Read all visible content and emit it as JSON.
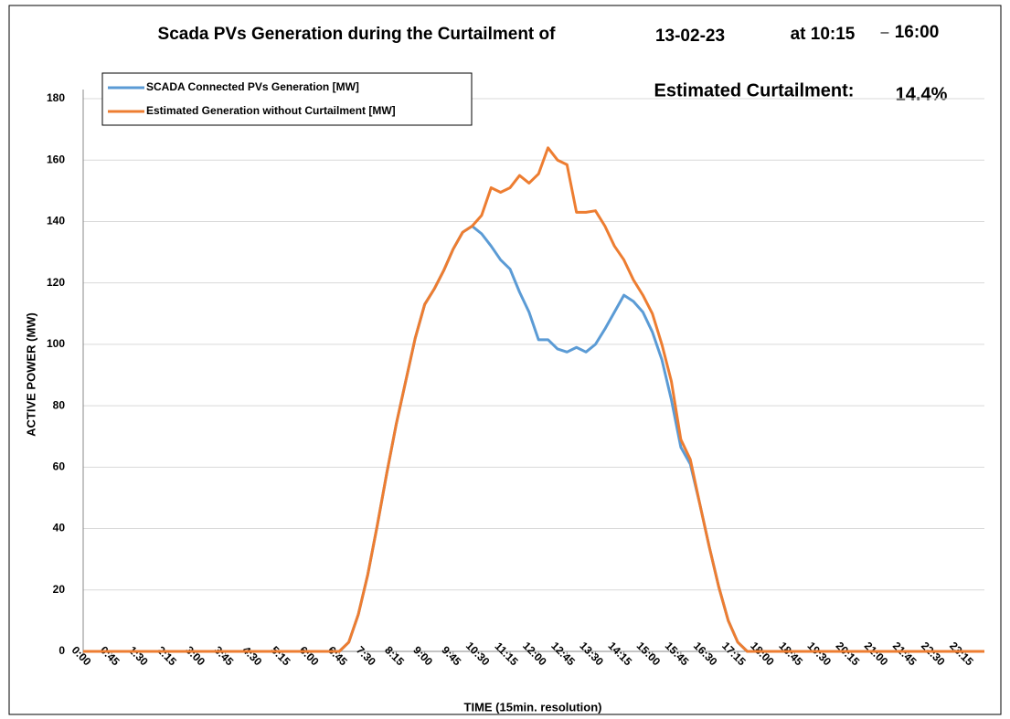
{
  "chart_data": {
    "type": "line",
    "title": "Scada PVs Generation during the Curtailment of",
    "title_date": "13-02-23",
    "title_period_start": "at 10:15",
    "title_period_dash": "–",
    "title_period_end": "16:00",
    "annotation_label": "Estimated Curtailment:",
    "annotation_value": "14.4%",
    "xlabel": "TIME (15min. resolution)",
    "ylabel": "ACTIVE POWER (MW)",
    "categories": [
      "0:00",
      null,
      null,
      "0:45",
      null,
      null,
      "1:30",
      null,
      null,
      "2:15",
      null,
      null,
      "3:00",
      null,
      null,
      "3:45",
      null,
      null,
      "4:30",
      null,
      null,
      "5:15",
      null,
      null,
      "6:00",
      null,
      null,
      "6:45",
      null,
      null,
      "7:30",
      null,
      null,
      "8:15",
      null,
      null,
      "9:00",
      null,
      null,
      "9:45",
      null,
      null,
      "10:30",
      null,
      null,
      "11:15",
      null,
      null,
      "12:00",
      null,
      null,
      "12:45",
      null,
      null,
      "13:30",
      null,
      null,
      "14:15",
      null,
      null,
      "15:00",
      null,
      null,
      "15:45",
      null,
      null,
      "16:30",
      null,
      null,
      "17:15",
      null,
      null,
      "18:00",
      null,
      null,
      "18:45",
      null,
      null,
      "19:30",
      null,
      null,
      "20:15",
      null,
      null,
      "21:00",
      null,
      null,
      "21:45",
      null,
      null,
      "22:30",
      null,
      null,
      "23:15",
      null,
      null
    ],
    "series": [
      {
        "name": "SCADA Connected PVs Generation [MW]",
        "color": "#5b9bd5",
        "values": [
          0,
          0,
          0,
          0,
          0,
          0,
          0,
          0,
          0,
          0,
          0,
          0,
          0,
          0,
          0,
          0,
          0,
          0,
          0,
          0,
          0,
          0,
          0,
          0,
          0,
          0,
          0,
          0,
          3,
          12,
          25,
          41,
          58,
          74,
          88,
          102,
          113,
          118,
          124,
          131,
          136.5,
          138.5,
          136,
          132,
          127.5,
          124.5,
          117,
          110.5,
          101.5,
          101.5,
          98.5,
          97.5,
          99,
          97.5,
          100,
          105,
          110.5,
          116,
          114,
          110.5,
          104,
          95,
          82,
          66.5,
          61,
          48,
          34,
          21,
          10,
          3,
          0,
          0,
          0,
          0,
          0,
          0,
          0,
          0,
          0,
          0,
          0,
          0,
          0,
          0,
          0,
          0,
          0,
          0,
          0,
          0,
          0,
          0,
          0,
          0,
          0,
          0
        ]
      },
      {
        "name": "Estimated Generation without Curtailment [MW]",
        "color": "#ed7d31",
        "values": [
          0,
          0,
          0,
          0,
          0,
          0,
          0,
          0,
          0,
          0,
          0,
          0,
          0,
          0,
          0,
          0,
          0,
          0,
          0,
          0,
          0,
          0,
          0,
          0,
          0,
          0,
          0,
          0,
          3,
          12,
          25,
          41,
          58,
          74,
          88,
          102,
          113,
          118,
          124,
          131,
          136.5,
          138.5,
          142,
          151,
          149.5,
          151,
          155,
          152.5,
          155.5,
          164,
          160,
          158.5,
          143,
          143,
          143.5,
          138.5,
          132,
          127.5,
          121,
          116,
          110,
          100,
          88,
          69,
          62.5,
          48,
          34,
          21,
          10,
          3,
          0,
          0,
          0,
          0,
          0,
          0,
          0,
          0,
          0,
          0,
          0,
          0,
          0,
          0,
          0,
          0,
          0,
          0,
          0,
          0,
          0,
          0,
          0,
          0,
          0,
          0
        ]
      }
    ],
    "ylim": [
      0,
      180
    ],
    "yticks": [
      0,
      20,
      40,
      60,
      80,
      100,
      120,
      140,
      160,
      180
    ],
    "grid": true,
    "legend": "upper left"
  }
}
